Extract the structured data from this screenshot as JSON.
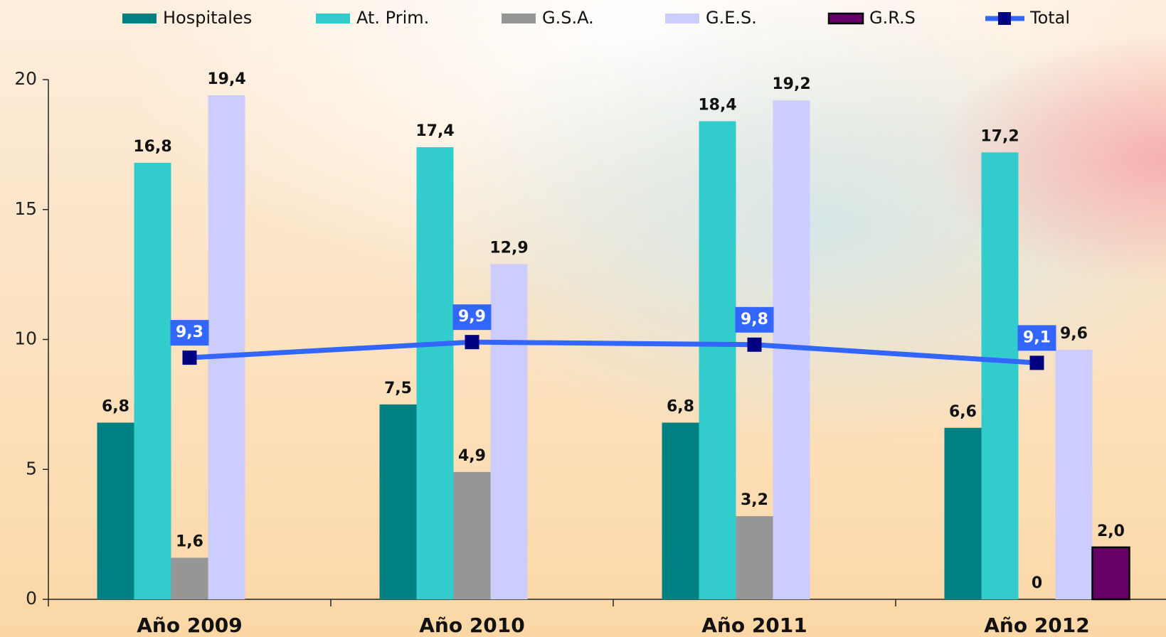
{
  "chart_data": {
    "type": "bar",
    "categories": [
      "Año 2009",
      "Año 2010",
      "Año 2011",
      "Año 2012"
    ],
    "series": [
      {
        "name": "Hospitales",
        "color": "#008080",
        "values": [
          6.8,
          7.5,
          6.8,
          6.6
        ],
        "value_labels": [
          "6,8",
          "7,5",
          "6,8",
          "6,6"
        ]
      },
      {
        "name": "At. Prim.",
        "color": "#33cccc",
        "values": [
          16.8,
          17.4,
          18.4,
          17.2
        ],
        "value_labels": [
          "16,8",
          "17,4",
          "18,4",
          "17,2"
        ]
      },
      {
        "name": "G.S.A.",
        "color": "#969696",
        "values": [
          1.6,
          4.9,
          3.2,
          0
        ],
        "value_labels": [
          "1,6",
          "4,9",
          "3,2",
          "0"
        ]
      },
      {
        "name": "G.E.S.",
        "color": "#ccccff",
        "values": [
          19.4,
          12.9,
          19.2,
          9.6
        ],
        "value_labels": [
          "19,4",
          "12,9",
          "19,2",
          "9,6"
        ]
      },
      {
        "name": "G.R.S",
        "color": "#660066",
        "values": [
          null,
          null,
          null,
          2.0
        ],
        "value_labels": [
          null,
          null,
          null,
          "2,0"
        ]
      },
      {
        "name": "Total",
        "type": "line",
        "color": "#3366ff",
        "marker_color": "#000080",
        "values": [
          9.3,
          9.9,
          9.8,
          9.1
        ],
        "value_labels": [
          "9,3",
          "9,9",
          "9,8",
          "9,1"
        ]
      }
    ],
    "ylim": [
      0,
      20
    ],
    "yticks": [
      0,
      5,
      10,
      15,
      20
    ],
    "legend": "top"
  }
}
